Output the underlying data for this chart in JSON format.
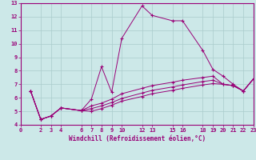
{
  "xlabel": "Windchill (Refroidissement éolien,°C)",
  "bg_color": "#cce8e8",
  "grid_color": "#aacccc",
  "line_color": "#990077",
  "xlim": [
    0,
    23
  ],
  "ylim": [
    4,
    13
  ],
  "xticks": [
    0,
    2,
    3,
    4,
    6,
    7,
    8,
    9,
    10,
    12,
    13,
    15,
    16,
    18,
    19,
    20,
    21,
    22,
    23
  ],
  "yticks": [
    4,
    5,
    6,
    7,
    8,
    9,
    10,
    11,
    12,
    13
  ],
  "lines": [
    {
      "x": [
        1,
        2,
        3,
        4,
        6,
        7,
        8,
        9,
        10,
        12,
        13,
        15,
        16,
        18,
        19,
        20,
        21,
        22,
        23
      ],
      "y": [
        6.5,
        4.4,
        4.65,
        5.25,
        5.05,
        5.9,
        8.3,
        6.4,
        10.4,
        12.8,
        12.1,
        11.7,
        11.7,
        9.5,
        8.1,
        7.6,
        7.0,
        6.5,
        7.4
      ]
    },
    {
      "x": [
        1,
        2,
        3,
        4,
        6,
        7,
        8,
        9,
        10,
        12,
        13,
        15,
        16,
        18,
        19,
        20,
        21,
        22,
        23
      ],
      "y": [
        6.5,
        4.4,
        4.65,
        5.25,
        5.05,
        5.4,
        5.6,
        5.9,
        6.3,
        6.7,
        6.9,
        7.15,
        7.3,
        7.5,
        7.6,
        7.0,
        6.9,
        6.5,
        7.4
      ]
    },
    {
      "x": [
        1,
        2,
        3,
        4,
        6,
        7,
        8,
        9,
        10,
        12,
        13,
        15,
        16,
        18,
        19,
        20,
        21,
        22,
        23
      ],
      "y": [
        6.5,
        4.4,
        4.65,
        5.25,
        5.05,
        5.2,
        5.4,
        5.65,
        5.95,
        6.35,
        6.55,
        6.8,
        6.95,
        7.2,
        7.3,
        7.0,
        6.9,
        6.5,
        7.4
      ]
    },
    {
      "x": [
        1,
        2,
        3,
        4,
        6,
        7,
        8,
        9,
        10,
        12,
        13,
        15,
        16,
        18,
        19,
        20,
        21,
        22,
        23
      ],
      "y": [
        6.5,
        4.4,
        4.65,
        5.25,
        5.05,
        5.0,
        5.2,
        5.45,
        5.75,
        6.1,
        6.3,
        6.55,
        6.7,
        6.95,
        7.05,
        7.0,
        6.9,
        6.5,
        7.4
      ]
    }
  ]
}
